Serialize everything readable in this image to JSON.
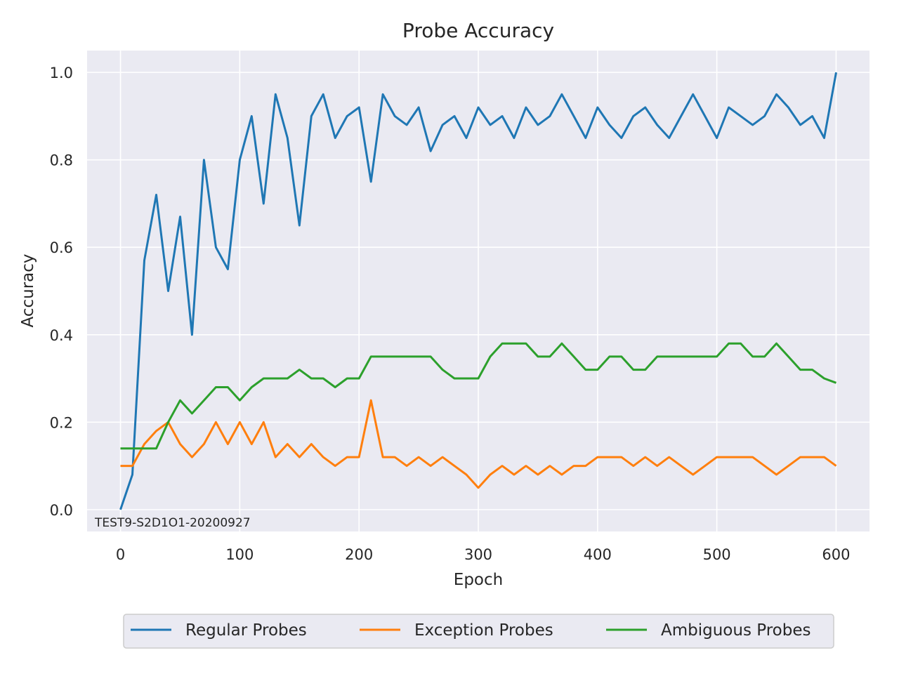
{
  "chart_data": {
    "type": "line",
    "title": "Probe Accuracy",
    "xlabel": "Epoch",
    "ylabel": "Accuracy",
    "xlim": [
      -28,
      628
    ],
    "ylim": [
      -0.05,
      1.05
    ],
    "xticks": [
      0,
      100,
      200,
      300,
      400,
      500,
      600
    ],
    "yticks": [
      0.0,
      0.2,
      0.4,
      0.6,
      0.8,
      1.0
    ],
    "xtick_labels": [
      "0",
      "100",
      "200",
      "300",
      "400",
      "500",
      "600"
    ],
    "ytick_labels": [
      "0.0",
      "0.2",
      "0.4",
      "0.6",
      "0.8",
      "1.0"
    ],
    "grid": true,
    "legend_position": "bottom-center",
    "annotation": "TEST9-S2D1O1-20200927",
    "x": [
      0,
      10,
      20,
      30,
      40,
      50,
      60,
      70,
      80,
      90,
      100,
      110,
      120,
      130,
      140,
      150,
      160,
      170,
      180,
      190,
      200,
      210,
      220,
      230,
      240,
      250,
      260,
      270,
      280,
      290,
      300,
      310,
      320,
      330,
      340,
      350,
      360,
      370,
      380,
      390,
      400,
      410,
      420,
      430,
      440,
      450,
      460,
      470,
      480,
      490,
      500,
      510,
      520,
      530,
      540,
      550,
      560,
      570,
      580,
      590,
      600
    ],
    "series": [
      {
        "name": "Regular Probes",
        "color": "#1f77b4",
        "values": [
          0.0,
          0.08,
          0.57,
          0.72,
          0.5,
          0.67,
          0.4,
          0.8,
          0.6,
          0.55,
          0.8,
          0.9,
          0.7,
          0.95,
          0.85,
          0.65,
          0.9,
          0.95,
          0.85,
          0.9,
          0.92,
          0.75,
          0.95,
          0.9,
          0.88,
          0.92,
          0.82,
          0.88,
          0.9,
          0.85,
          0.92,
          0.88,
          0.9,
          0.85,
          0.92,
          0.88,
          0.9,
          0.95,
          0.9,
          0.85,
          0.92,
          0.88,
          0.85,
          0.9,
          0.92,
          0.88,
          0.85,
          0.9,
          0.95,
          0.9,
          0.85,
          0.92,
          0.9,
          0.88,
          0.9,
          0.95,
          0.92,
          0.88,
          0.9,
          0.85,
          1.0
        ]
      },
      {
        "name": "Exception Probes",
        "color": "#ff7f0e",
        "values": [
          0.1,
          0.1,
          0.15,
          0.18,
          0.2,
          0.15,
          0.12,
          0.15,
          0.2,
          0.15,
          0.2,
          0.15,
          0.2,
          0.12,
          0.15,
          0.12,
          0.15,
          0.12,
          0.1,
          0.12,
          0.12,
          0.25,
          0.12,
          0.12,
          0.1,
          0.12,
          0.1,
          0.12,
          0.1,
          0.08,
          0.05,
          0.08,
          0.1,
          0.08,
          0.1,
          0.08,
          0.1,
          0.08,
          0.1,
          0.1,
          0.12,
          0.12,
          0.12,
          0.1,
          0.12,
          0.1,
          0.12,
          0.1,
          0.08,
          0.1,
          0.12,
          0.12,
          0.12,
          0.12,
          0.1,
          0.08,
          0.1,
          0.12,
          0.12,
          0.12,
          0.1
        ]
      },
      {
        "name": "Ambiguous Probes",
        "color": "#2ca02c",
        "values": [
          0.14,
          0.14,
          0.14,
          0.14,
          0.2,
          0.25,
          0.22,
          0.25,
          0.28,
          0.28,
          0.25,
          0.28,
          0.3,
          0.3,
          0.3,
          0.32,
          0.3,
          0.3,
          0.28,
          0.3,
          0.3,
          0.35,
          0.35,
          0.35,
          0.35,
          0.35,
          0.35,
          0.32,
          0.3,
          0.3,
          0.3,
          0.35,
          0.38,
          0.38,
          0.38,
          0.35,
          0.35,
          0.38,
          0.35,
          0.32,
          0.32,
          0.35,
          0.35,
          0.32,
          0.32,
          0.35,
          0.35,
          0.35,
          0.35,
          0.35,
          0.35,
          0.38,
          0.38,
          0.35,
          0.35,
          0.38,
          0.35,
          0.32,
          0.32,
          0.3,
          0.29
        ]
      }
    ]
  }
}
